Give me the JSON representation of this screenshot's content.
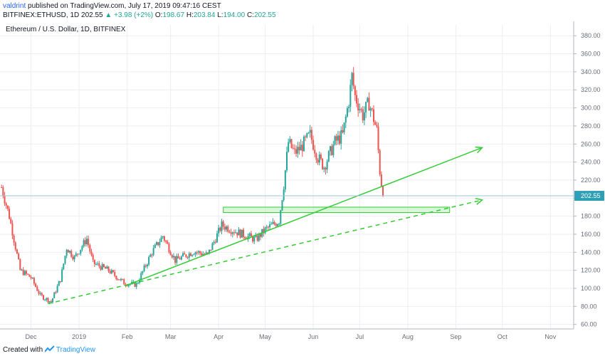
{
  "publication": {
    "author": "valdrint",
    "text": "published on TradingView.com, July 17, 2019 09:47:16 CEST"
  },
  "quote": {
    "symbol": "BITFINEX:ETHUSD, 1D",
    "last": "202.55",
    "change": "▲ +3.98 (+2%)",
    "open_label": "O:",
    "open": "198.67",
    "high_label": "H:",
    "high": "203.84",
    "low_label": "L:",
    "low": "194.00",
    "close_label": "C:",
    "close": "202.55"
  },
  "footer": {
    "created_with": "Created with",
    "brand": "TradingView"
  },
  "colors": {
    "up": "#26a69a",
    "down": "#ef5350",
    "trendline": "#33cc33",
    "zone_fill": "#b8f0b8",
    "price_line": "#9bc4d8",
    "price_tag": "#2e9fb5",
    "grid": "#eceef2",
    "axis": "#6a6d78"
  },
  "chart_data": {
    "type": "candlestick",
    "title": "Ethereum / U.S. Dollar, 1D, BITFINEX",
    "x_labels": [
      "Dec",
      "2019",
      "Feb",
      "Mar",
      "Apr",
      "May",
      "Jun",
      "Jul",
      "Aug",
      "Sep",
      "Oct",
      "Nov"
    ],
    "x_label_dates": [
      "2018-12-01",
      "2019-01-01",
      "2019-02-01",
      "2019-03-01",
      "2019-04-01",
      "2019-05-01",
      "2019-06-01",
      "2019-07-01",
      "2019-08-01",
      "2019-09-01",
      "2019-10-01",
      "2019-11-01"
    ],
    "y_ticks": [
      60,
      80,
      100,
      120,
      140,
      160,
      180,
      200,
      220,
      240,
      260,
      280,
      300,
      320,
      340,
      360,
      380
    ],
    "y_tick_labels": [
      "60.00",
      "80.00",
      "100.00",
      "120.00",
      "140.00",
      "160.00",
      "180.00",
      "200.00",
      "220.00",
      "240.00",
      "260.00",
      "280.00",
      "300.00",
      "320.00",
      "340.00",
      "360.00",
      "380.00"
    ],
    "ylim": [
      55,
      392
    ],
    "xlim": [
      "2018-11-11",
      "2019-11-16"
    ],
    "grid": true,
    "price_axis_side": "right",
    "last_price": 202.55,
    "last_price_label": "202.55",
    "price_path": [
      {
        "date": "2018-11-12",
        "close": 212
      },
      {
        "date": "2018-11-17",
        "close": 180
      },
      {
        "date": "2018-11-24",
        "close": 120
      },
      {
        "date": "2018-12-01",
        "close": 112
      },
      {
        "date": "2018-12-07",
        "close": 92
      },
      {
        "date": "2018-12-14",
        "close": 85
      },
      {
        "date": "2018-12-20",
        "close": 110
      },
      {
        "date": "2018-12-24",
        "close": 145
      },
      {
        "date": "2018-12-29",
        "close": 134
      },
      {
        "date": "2019-01-06",
        "close": 155
      },
      {
        "date": "2019-01-10",
        "close": 128
      },
      {
        "date": "2019-01-20",
        "close": 120
      },
      {
        "date": "2019-01-30",
        "close": 106
      },
      {
        "date": "2019-02-07",
        "close": 104
      },
      {
        "date": "2019-02-17",
        "close": 140
      },
      {
        "date": "2019-02-24",
        "close": 158
      },
      {
        "date": "2019-03-04",
        "close": 131
      },
      {
        "date": "2019-03-16",
        "close": 141
      },
      {
        "date": "2019-03-25",
        "close": 137
      },
      {
        "date": "2019-04-03",
        "close": 170
      },
      {
        "date": "2019-04-12",
        "close": 163
      },
      {
        "date": "2019-04-25",
        "close": 154
      },
      {
        "date": "2019-05-01",
        "close": 165
      },
      {
        "date": "2019-05-10",
        "close": 175
      },
      {
        "date": "2019-05-13",
        "close": 215
      },
      {
        "date": "2019-05-16",
        "close": 262
      },
      {
        "date": "2019-05-20",
        "close": 250
      },
      {
        "date": "2019-05-24",
        "close": 256
      },
      {
        "date": "2019-05-30",
        "close": 270
      },
      {
        "date": "2019-06-04",
        "close": 245
      },
      {
        "date": "2019-06-08",
        "close": 235
      },
      {
        "date": "2019-06-15",
        "close": 262
      },
      {
        "date": "2019-06-20",
        "close": 270
      },
      {
        "date": "2019-06-24",
        "close": 308
      },
      {
        "date": "2019-06-26",
        "close": 335
      },
      {
        "date": "2019-06-28",
        "close": 313
      },
      {
        "date": "2019-07-03",
        "close": 292
      },
      {
        "date": "2019-07-07",
        "close": 306
      },
      {
        "date": "2019-07-10",
        "close": 288
      },
      {
        "date": "2019-07-12",
        "close": 275
      },
      {
        "date": "2019-07-14",
        "close": 230
      },
      {
        "date": "2019-07-16",
        "close": 202.55
      }
    ],
    "annotations": {
      "support_zone": {
        "from": "2019-04-04",
        "to": "2019-08-28",
        "low": 184,
        "high": 190
      },
      "trendline_solid": {
        "points": [
          {
            "date": "2019-01-31",
            "value": 103
          },
          {
            "date": "2019-09-18",
            "value": 256
          }
        ]
      },
      "trendline_dashed": {
        "points": [
          {
            "date": "2018-12-12",
            "value": 83
          },
          {
            "date": "2019-09-18",
            "value": 198
          }
        ]
      }
    }
  }
}
